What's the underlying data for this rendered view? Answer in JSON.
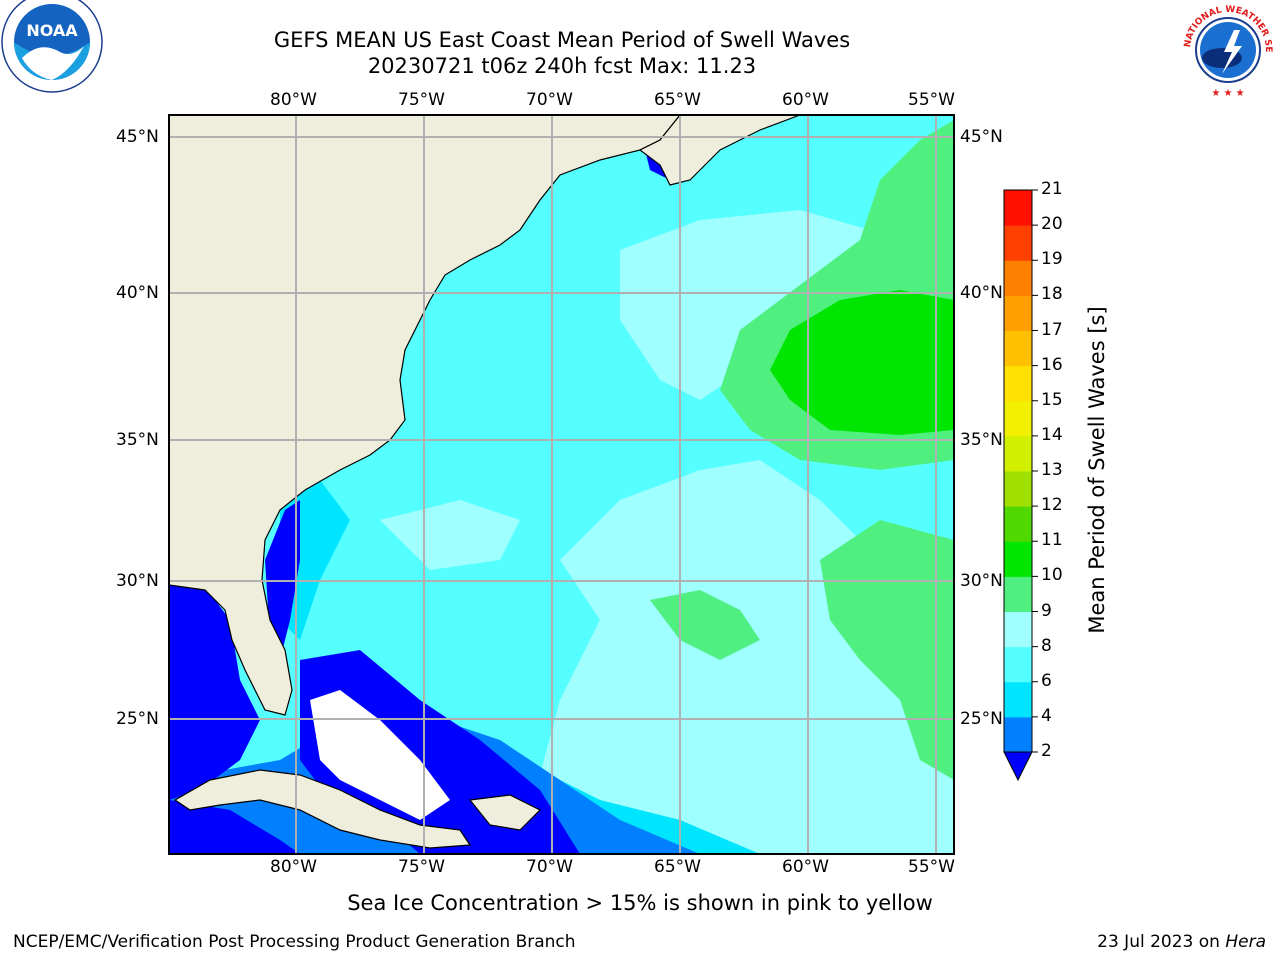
{
  "title": {
    "line1": "GEFS MEAN US East Coast Mean Period of Swell Waves",
    "line2": "20230721 t06z 240h fcst   Max: 11.23"
  },
  "map": {
    "lon_ticks": [
      "80°W",
      "75°W",
      "70°W",
      "65°W",
      "60°W",
      "55°W"
    ],
    "lat_ticks": [
      "45°N",
      "40°N",
      "35°N",
      "30°N",
      "25°N"
    ],
    "land_color": "#efeedc",
    "ocean_dominant": "#55ffff",
    "grid_color": "#b0b0b0"
  },
  "colorbar": {
    "label": "Mean Period of Swell Waves [s]",
    "ticks": [
      "2",
      "4",
      "6",
      "8",
      "9",
      "10",
      "11",
      "12",
      "13",
      "14",
      "15",
      "16",
      "17",
      "18",
      "19",
      "20",
      "21"
    ],
    "colors": [
      "#0000ff",
      "#0080ff",
      "#00e5ff",
      "#55ffff",
      "#a0ffff",
      "#50f080",
      "#00e600",
      "#50d800",
      "#a0e000",
      "#d0f000",
      "#f0f000",
      "#ffe000",
      "#ffc000",
      "#ffa000",
      "#ff8000",
      "#ff4000",
      "#ff1000",
      "#ff0000"
    ]
  },
  "notes": {
    "sea_ice": "Sea Ice Concentration > 15% is shown in pink to yellow"
  },
  "footer": {
    "left": "NCEP/EMC/Verification Post Processing Product Generation Branch",
    "right_date": "23 Jul 2023 on ",
    "right_machine": "Hera"
  },
  "logos": {
    "noaa_text": "NOAA",
    "nws_text": "NATIONAL WEATHER SERVICE"
  }
}
